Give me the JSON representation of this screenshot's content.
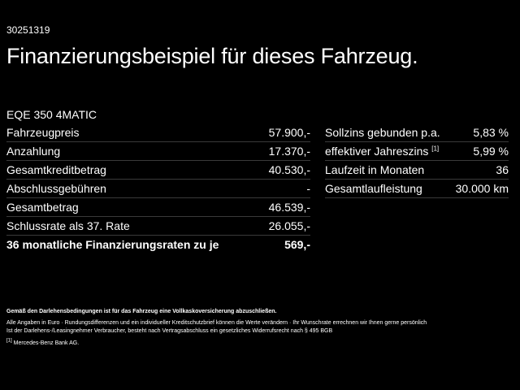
{
  "ref_id": "30251319",
  "headline": "Finanzierungsbeispiel für dieses Fahrzeug.",
  "model": "EQE 350 4MATIC",
  "left_table": [
    {
      "label": "Fahrzeugpreis",
      "value": "57.900,-"
    },
    {
      "label": "Anzahlung",
      "value": "17.370,-"
    },
    {
      "label": "Gesamtkreditbetrag",
      "value": "40.530,-"
    },
    {
      "label": "Abschlussgebühren",
      "value": "-"
    },
    {
      "label": "Gesamtbetrag",
      "value": "46.539,-"
    },
    {
      "label": "Schlussrate als 37. Rate",
      "value": "26.055,-"
    },
    {
      "label": "36 monatliche Finanzierungsraten zu je",
      "value": "569,-"
    }
  ],
  "right_table": [
    {
      "label": "Sollzins gebunden p.a.",
      "value": "5,83 %"
    },
    {
      "label": "effektiver Jahreszins",
      "footnote_mark": "[1]",
      "value": "5,99 %"
    },
    {
      "label": "Laufzeit in Monaten",
      "value": "36"
    },
    {
      "label": "Gesamtlaufleistung",
      "value": "30.000 km"
    }
  ],
  "notes": {
    "insurance": "Gemäß den Darlehensbedingungen ist für das Fahrzeug eine Vollkaskoversicherung abzuschließen.",
    "disclaimer_line1": "Alle Angaben in Euro · Rundungsdifferenzen und ein individueller Kreditschutzbrief können die Werte verändern · Ihr Wunschrate errechnen wir Ihnen gerne persönlich",
    "disclaimer_line2": "Ist der Darlehens-/Leasingnehmer Verbraucher, besteht nach Vertragsabschluss ein gesetzliches Widerrufsrecht nach § 495 BGB",
    "footnote_mark": "[1]",
    "footnote_text": "Mercedes-Benz Bank AG."
  },
  "colors": {
    "background": "#000000",
    "text": "#ffffff",
    "divider": "#3a3a3a"
  }
}
